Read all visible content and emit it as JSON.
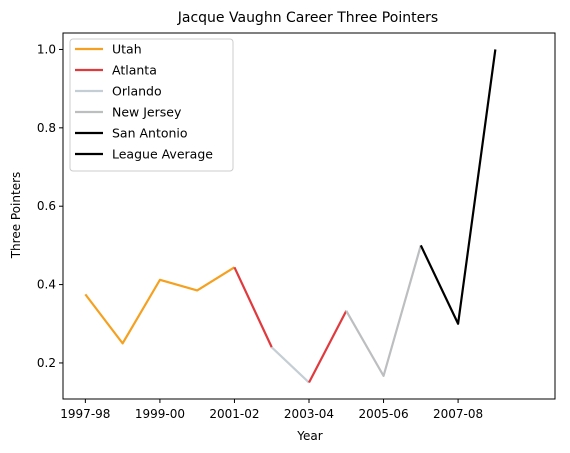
{
  "chart_data": {
    "type": "line",
    "title": "Jacque Vaughn Career Three Pointers",
    "xlabel": "Year",
    "ylabel": "Three Pointers",
    "ylim": [
      0.108,
      1.042
    ],
    "yticks": [
      0.2,
      0.4,
      0.6,
      0.8,
      1.0
    ],
    "ytick_labels": [
      "0.2",
      "0.4",
      "0.6",
      "0.8",
      "1.0"
    ],
    "xticks": [
      1997,
      1999,
      2001,
      2003,
      2005,
      2007
    ],
    "xtick_labels": [
      "1997-98",
      "1999-00",
      "2001-02",
      "2003-04",
      "2005-06",
      "2007-08"
    ],
    "xlim": [
      1996.4,
      2009.6
    ],
    "grid": false,
    "legend_position": "top-left",
    "series": [
      {
        "name": "Utah",
        "color": "#f5a01e",
        "x": [
          1997,
          1998,
          1999,
          2000,
          2001
        ],
        "y": [
          0.375,
          0.25,
          0.412,
          0.385,
          0.444
        ]
      },
      {
        "name": "Atlanta",
        "color": "#e03a3e",
        "x": [
          2001,
          2002
        ],
        "y": [
          0.444,
          0.24
        ]
      },
      {
        "name": "Orlando",
        "color": "#c4ced4",
        "x": [
          2002,
          2003
        ],
        "y": [
          0.24,
          0.15
        ]
      },
      {
        "name": "Atlanta",
        "color": "#e03a3e",
        "x": [
          2003,
          2004
        ],
        "y": [
          0.15,
          0.333
        ]
      },
      {
        "name": "New Jersey",
        "color": "#bcbec0",
        "x": [
          2004,
          2005,
          2006
        ],
        "y": [
          0.333,
          0.167,
          0.5
        ]
      },
      {
        "name": "San Antonio",
        "color": "#000000",
        "x": [
          2006,
          2007,
          2008
        ],
        "y": [
          0.5,
          0.3,
          1.0
        ]
      }
    ],
    "legend": [
      {
        "label": "Utah",
        "color": "#f5a01e"
      },
      {
        "label": "Atlanta",
        "color": "#e03a3e"
      },
      {
        "label": "Orlando",
        "color": "#c4ced4"
      },
      {
        "label": "New Jersey",
        "color": "#bcbec0"
      },
      {
        "label": "San Antonio",
        "color": "#000000"
      },
      {
        "label": "League Average",
        "color": "#000000"
      }
    ]
  }
}
